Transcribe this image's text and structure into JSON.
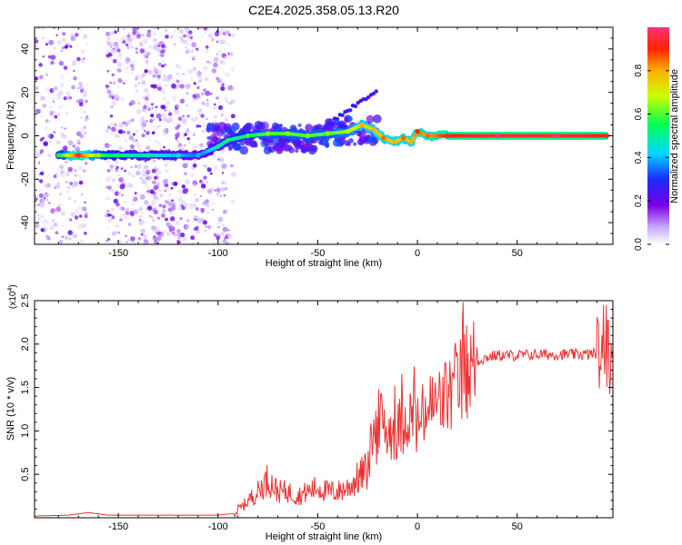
{
  "figure": {
    "title": "C2E4.2025.358.05.13.R20"
  },
  "colors": {
    "snr_line": "#ee3333",
    "axis": "#000000",
    "spectrum_scatter": "#7a00e6",
    "spectrum_ridge": "#00e0ff",
    "spectrum_core": "#ff2200"
  },
  "chart_data": [
    {
      "type": "heatmap",
      "name": "spectrogram",
      "title": "C2E4.2025.358.05.13.R20",
      "xlabel": "Height of straight line (km)",
      "ylabel": "Frequency (Hz)",
      "xlim": [
        -192,
        98
      ],
      "ylim": [
        -50,
        50
      ],
      "x_ticks": [
        -150,
        -100,
        -50,
        0,
        50
      ],
      "y_ticks": [
        -40,
        -20,
        0,
        20,
        40
      ],
      "colorbar": {
        "label": "Normalized spectral amplitude",
        "range": [
          0,
          1
        ],
        "ticks": [
          0.0,
          0.2,
          0.4,
          0.6,
          0.8
        ],
        "tick_labels": [
          "0.0",
          "0.2",
          "0.4",
          "0.6",
          "0.8"
        ]
      },
      "ridge": [
        {
          "x": -180,
          "y": -9,
          "amp": 0.5
        },
        {
          "x": -170,
          "y": -9,
          "amp": 0.9
        },
        {
          "x": -160,
          "y": -9,
          "amp": 0.6
        },
        {
          "x": -150,
          "y": -9,
          "amp": 0.5
        },
        {
          "x": -135,
          "y": -9,
          "amp": 0.45
        },
        {
          "x": -120,
          "y": -9,
          "amp": 0.4
        },
        {
          "x": -110,
          "y": -9,
          "amp": 0.35
        },
        {
          "x": -100,
          "y": -5,
          "amp": 0.45
        },
        {
          "x": -95,
          "y": -2,
          "amp": 0.5
        },
        {
          "x": -85,
          "y": 0,
          "amp": 0.55
        },
        {
          "x": -75,
          "y": 1,
          "amp": 0.6
        },
        {
          "x": -65,
          "y": 1,
          "amp": 0.6
        },
        {
          "x": -55,
          "y": 0,
          "amp": 0.6
        },
        {
          "x": -45,
          "y": 1,
          "amp": 0.6
        },
        {
          "x": -35,
          "y": 2,
          "amp": 0.65
        },
        {
          "x": -28,
          "y": 5,
          "amp": 0.75
        },
        {
          "x": -22,
          "y": 3,
          "amp": 0.75
        },
        {
          "x": -17,
          "y": -1,
          "amp": 0.8
        },
        {
          "x": -12,
          "y": -3,
          "amp": 0.75
        },
        {
          "x": -7,
          "y": -1,
          "amp": 0.8
        },
        {
          "x": -3,
          "y": -3,
          "amp": 0.75
        },
        {
          "x": 0,
          "y": 2,
          "amp": 0.85
        },
        {
          "x": 5,
          "y": 0,
          "amp": 0.8
        },
        {
          "x": 15,
          "y": 0,
          "amp": 0.9
        },
        {
          "x": 40,
          "y": 0,
          "amp": 0.95
        },
        {
          "x": 70,
          "y": 0,
          "amp": 0.95
        },
        {
          "x": 95,
          "y": 0,
          "amp": 0.9
        }
      ]
    },
    {
      "type": "line",
      "name": "snr",
      "xlabel": "Height of straight line (km)",
      "ylabel": "SNR (10 * v/v)",
      "y_scale_label": "(x10",
      "y_scale_exp": "4",
      "y_scale_close": ")",
      "xlim": [
        -192,
        98
      ],
      "ylim": [
        0,
        2.5
      ],
      "x_ticks": [
        -150,
        -100,
        -50,
        0,
        50
      ],
      "y_ticks": [
        0.5,
        1.0,
        1.5,
        2.0,
        2.5
      ],
      "y_tick_labels": [
        "0.5",
        "1.0",
        "1.5",
        "2.0",
        "2.5"
      ],
      "series": [
        {
          "name": "SNR",
          "x": [
            -192,
            -175,
            -165,
            -155,
            -140,
            -120,
            -100,
            -92,
            -88,
            -85,
            -80,
            -75,
            -70,
            -65,
            -60,
            -55,
            -50,
            -45,
            -40,
            -35,
            -30,
            -25,
            -22,
            -20,
            -18,
            -15,
            -10,
            -5,
            -2,
            0,
            5,
            10,
            15,
            20,
            25,
            30,
            35,
            40,
            50,
            60,
            70,
            80,
            85,
            90,
            93,
            95,
            98
          ],
          "values": [
            0.02,
            0.03,
            0.06,
            0.03,
            0.03,
            0.03,
            0.03,
            0.05,
            0.12,
            0.2,
            0.3,
            0.45,
            0.3,
            0.3,
            0.25,
            0.3,
            0.35,
            0.3,
            0.3,
            0.35,
            0.45,
            0.55,
            0.9,
            1.1,
            1.1,
            1.0,
            1.0,
            1.2,
            1.1,
            1.05,
            1.25,
            1.3,
            1.4,
            1.5,
            1.7,
            1.8,
            1.85,
            1.87,
            1.87,
            1.88,
            1.88,
            1.88,
            1.88,
            1.9,
            1.85,
            1.9,
            1.85
          ]
        }
      ]
    }
  ]
}
